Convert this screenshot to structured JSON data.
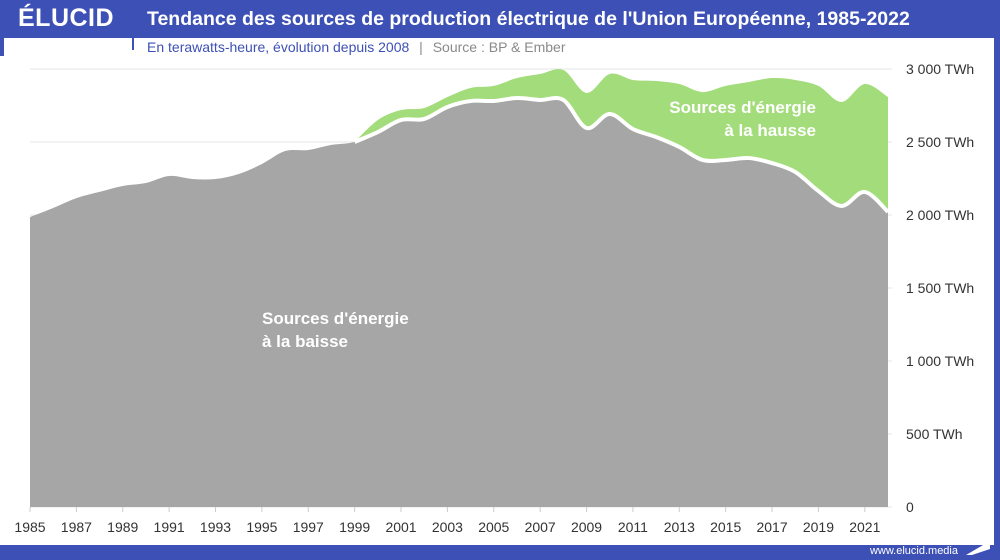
{
  "brand": {
    "logo_text": "ÉLUCID",
    "url": "www.elucid.media",
    "color": "#3d50b6"
  },
  "header": {
    "title": "Tendance des sources de production électrique de l'Union Européenne, 1985-2022",
    "subtitle": "En terawatts-heure, évolution depuis 2008",
    "separator": "|",
    "source": "Source : BP & Ember"
  },
  "chart_data": {
    "type": "area",
    "stacked": true,
    "title": "Tendance des sources de production électrique de l'Union Européenne, 1985-2022",
    "xlabel": "",
    "ylabel": "",
    "ylim": [
      0,
      3000
    ],
    "xlim": [
      1985,
      2022
    ],
    "grid": true,
    "yticks": [
      0,
      500,
      1000,
      1500,
      2000,
      2500,
      3000
    ],
    "ytick_labels": [
      "0",
      "500 TWh",
      "1 000 TWh",
      "1 500 TWh",
      "2 000 TWh",
      "2 500 TWh",
      "3 000 TWh"
    ],
    "xtick_labels": [
      "1985",
      "1987",
      "1989",
      "1991",
      "1993",
      "1995",
      "1997",
      "1999",
      "2001",
      "2003",
      "2005",
      "2007",
      "2009",
      "2011",
      "2013",
      "2015",
      "2017",
      "2019",
      "2021"
    ],
    "x": [
      1985,
      1986,
      1987,
      1988,
      1989,
      1990,
      1991,
      1992,
      1993,
      1994,
      1995,
      1996,
      1997,
      1998,
      1999,
      2000,
      2001,
      2002,
      2003,
      2004,
      2005,
      2006,
      2007,
      2008,
      2009,
      2010,
      2011,
      2012,
      2013,
      2014,
      2015,
      2016,
      2017,
      2018,
      2019,
      2020,
      2021,
      2022
    ],
    "series": [
      {
        "name": "Sources d'énergie à la baisse",
        "color": "#a6a6a6",
        "values": [
          1986,
          2048,
          2116,
          2158,
          2199,
          2219,
          2267,
          2247,
          2247,
          2281,
          2349,
          2438,
          2445,
          2480,
          2500,
          2568,
          2651,
          2658,
          2740,
          2781,
          2781,
          2801,
          2788,
          2788,
          2596,
          2692,
          2589,
          2534,
          2466,
          2377,
          2377,
          2390,
          2356,
          2295,
          2164,
          2062,
          2158,
          2021
        ]
      },
      {
        "name": "Sources d'énergie à la hausse",
        "color": "#a3dc7a",
        "values": [
          null,
          null,
          null,
          null,
          null,
          null,
          null,
          null,
          null,
          null,
          null,
          null,
          null,
          null,
          0,
          83,
          68,
          75,
          68,
          89,
          103,
          137,
          178,
          205,
          240,
          274,
          336,
          384,
          431,
          465,
          507,
          521,
          582,
          630,
          720,
          712,
          739,
          787
        ]
      }
    ],
    "annotations": [
      {
        "line1": "Sources d'énergie",
        "line2": "à la baisse"
      },
      {
        "line1": "Sources d'énergie",
        "line2": "à la hausse"
      }
    ]
  }
}
